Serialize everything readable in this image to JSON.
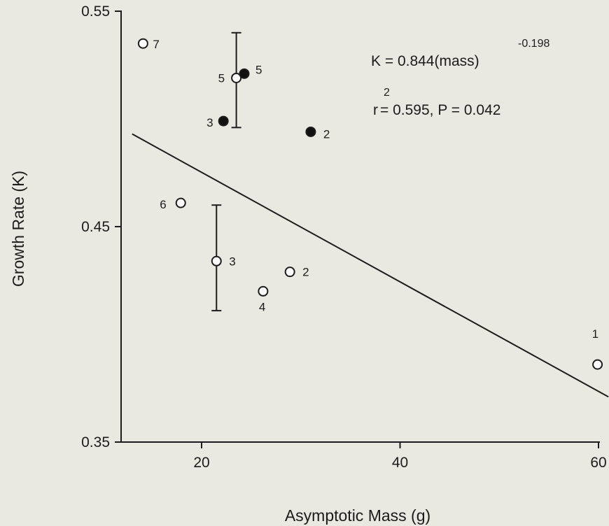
{
  "chart_data": {
    "type": "scatter",
    "xlabel": "Asymptotic Mass (g)",
    "ylabel": "Growth Rate (K)",
    "xlim": [
      13,
      61
    ],
    "ylim": [
      0.35,
      0.56
    ],
    "xticks": [
      {
        "value": 20,
        "label": "20"
      },
      {
        "value": 40,
        "label": "40"
      },
      {
        "value": 60,
        "label": "60"
      }
    ],
    "yticks": [
      {
        "value": 0.35,
        "label": "0.35"
      },
      {
        "value": 0.45,
        "label": "0.45"
      },
      {
        "value": 0.55,
        "label": "0.55"
      }
    ],
    "grid": false,
    "series": [
      {
        "marker": "open-circle",
        "points": [
          {
            "x": 59.9,
            "y": 0.386,
            "label": "1"
          },
          {
            "x": 28.9,
            "y": 0.429,
            "label": "2"
          },
          {
            "x": 21.5,
            "y": 0.434,
            "label": "3",
            "err_low": 0.411,
            "err_high": 0.46
          },
          {
            "x": 26.2,
            "y": 0.42,
            "label": "4"
          },
          {
            "x": 23.5,
            "y": 0.519,
            "label": "5",
            "err_low": 0.496,
            "err_high": 0.54
          },
          {
            "x": 17.9,
            "y": 0.461,
            "label": "6"
          },
          {
            "x": 14.1,
            "y": 0.535,
            "label": "7"
          }
        ]
      },
      {
        "marker": "filled-circle",
        "points": [
          {
            "x": 31.0,
            "y": 0.494,
            "label": "2"
          },
          {
            "x": 22.2,
            "y": 0.499,
            "label": "3"
          },
          {
            "x": 24.3,
            "y": 0.521,
            "label": "5"
          }
        ]
      }
    ],
    "fit_line": {
      "x": [
        13,
        61
      ],
      "y": [
        0.493,
        0.371
      ]
    },
    "annotations": {
      "equation": "K = 0.844(mass)",
      "exponent": "-0.198",
      "r_prefix": "r",
      "r_power": "2",
      "stats": " = 0.595, P = 0.042"
    }
  }
}
